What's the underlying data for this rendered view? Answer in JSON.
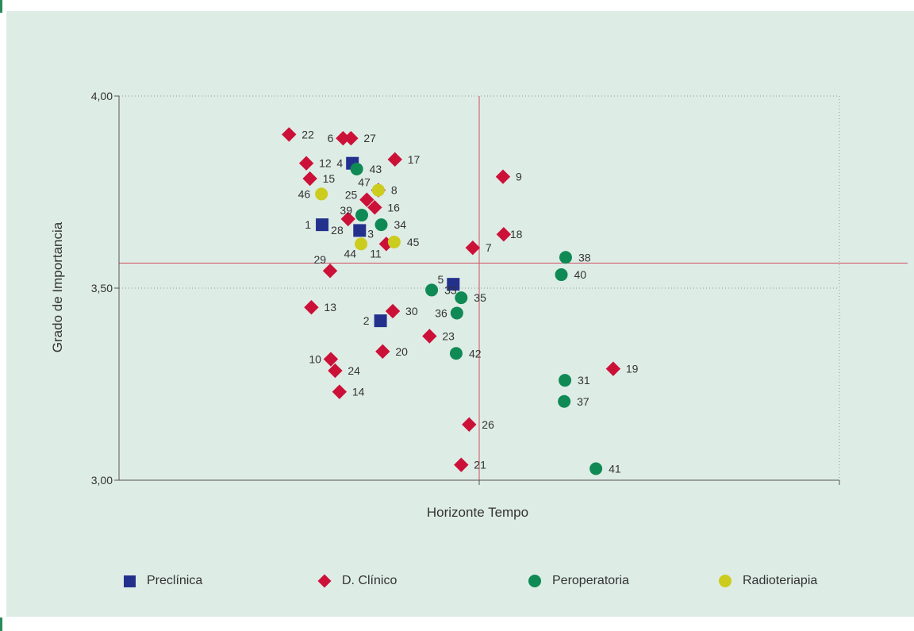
{
  "colors": {
    "background": "#deece6",
    "axis": "#555555",
    "grid": "#8a9a90",
    "reference_lines": "#d05060",
    "Preclínica": "#23318d",
    "D. Clínico": "#cc1138",
    "Peroperatoria": "#0f8a54",
    "Radioteriapia": "#cccc1e"
  },
  "chart_data": {
    "type": "scatter",
    "xlabel": "Horizonte Tempo",
    "ylabel": "Grado de Importancia",
    "ylim": [
      3.0,
      4.0
    ],
    "xlim": [
      0,
      100
    ],
    "y_ticks": [
      "3,00",
      "3,50",
      "4,00"
    ],
    "y_tick_values": [
      3.0,
      3.5,
      4.0
    ],
    "x_reference": 50,
    "y_reference": 3.565,
    "grid": "dotted at 3,50 and 4,00; dotted right border",
    "legend_position": "bottom",
    "series": [
      {
        "name": "Preclínica",
        "marker": "square",
        "points": [
          {
            "label": "1",
            "x": 28.2,
            "y": 3.665
          },
          {
            "label": "2",
            "x": 36.3,
            "y": 3.415
          },
          {
            "label": "3",
            "x": 33.4,
            "y": 3.65
          },
          {
            "label": "4",
            "x": 32.4,
            "y": 3.825
          },
          {
            "label": "5",
            "x": 46.4,
            "y": 3.51
          }
        ]
      },
      {
        "name": "D. Clínico",
        "marker": "diamond",
        "points": [
          {
            "label": "6",
            "x": 31.1,
            "y": 3.89
          },
          {
            "label": "7",
            "x": 49.1,
            "y": 3.605
          },
          {
            "label": "8",
            "x": 36.0,
            "y": 3.755
          },
          {
            "label": "9",
            "x": 53.3,
            "y": 3.79
          },
          {
            "label": "10",
            "x": 29.4,
            "y": 3.315
          },
          {
            "label": "11",
            "x": 37.1,
            "y": 3.615
          },
          {
            "label": "12",
            "x": 26.0,
            "y": 3.825
          },
          {
            "label": "13",
            "x": 26.7,
            "y": 3.45
          },
          {
            "label": "14",
            "x": 30.6,
            "y": 3.23
          },
          {
            "label": "15",
            "x": 26.5,
            "y": 3.785
          },
          {
            "label": "16",
            "x": 35.5,
            "y": 3.71
          },
          {
            "label": "17",
            "x": 38.3,
            "y": 3.835
          },
          {
            "label": "18",
            "x": 53.4,
            "y": 3.64
          },
          {
            "label": "19",
            "x": 68.6,
            "y": 3.29
          },
          {
            "label": "20",
            "x": 36.6,
            "y": 3.335
          },
          {
            "label": "21",
            "x": 47.5,
            "y": 3.04
          },
          {
            "label": "22",
            "x": 23.6,
            "y": 3.9
          },
          {
            "label": "23",
            "x": 43.1,
            "y": 3.375
          },
          {
            "label": "24",
            "x": 30.0,
            "y": 3.285
          },
          {
            "label": "25",
            "x": 34.4,
            "y": 3.73
          },
          {
            "label": "26",
            "x": 48.6,
            "y": 3.145
          },
          {
            "label": "27",
            "x": 32.2,
            "y": 3.89
          },
          {
            "label": "28",
            "x": 31.8,
            "y": 3.68
          },
          {
            "label": "29",
            "x": 29.3,
            "y": 3.545
          },
          {
            "label": "30",
            "x": 38.0,
            "y": 3.44
          }
        ]
      },
      {
        "name": "Peroperatoria",
        "marker": "circle",
        "points": [
          {
            "label": "31",
            "x": 61.9,
            "y": 3.26
          },
          {
            "label": "33",
            "x": 43.4,
            "y": 3.495
          },
          {
            "label": "34",
            "x": 36.4,
            "y": 3.665
          },
          {
            "label": "35",
            "x": 47.5,
            "y": 3.475
          },
          {
            "label": "36",
            "x": 46.9,
            "y": 3.435
          },
          {
            "label": "37",
            "x": 61.8,
            "y": 3.205
          },
          {
            "label": "38",
            "x": 62.0,
            "y": 3.58
          },
          {
            "label": "39",
            "x": 33.7,
            "y": 3.69
          },
          {
            "label": "40",
            "x": 61.4,
            "y": 3.535
          },
          {
            "label": "41",
            "x": 66.2,
            "y": 3.03
          },
          {
            "label": "42",
            "x": 46.8,
            "y": 3.33
          },
          {
            "label": "43",
            "x": 33.0,
            "y": 3.81
          }
        ]
      },
      {
        "name": "Radioteriapia",
        "marker": "circle",
        "points": [
          {
            "label": "44",
            "x": 33.6,
            "y": 3.615
          },
          {
            "label": "45",
            "x": 38.2,
            "y": 3.62
          },
          {
            "label": "46",
            "x": 28.1,
            "y": 3.745
          },
          {
            "label": "47",
            "x": 36.0,
            "y": 3.755
          }
        ]
      }
    ]
  },
  "legend": {
    "items": [
      {
        "label": "Preclínica",
        "marker": "square"
      },
      {
        "label": "D. Clínico",
        "marker": "diamond"
      },
      {
        "label": "Peroperatoria",
        "marker": "circle-green"
      },
      {
        "label": "Radioteriapia",
        "marker": "circle-yellow"
      }
    ]
  }
}
